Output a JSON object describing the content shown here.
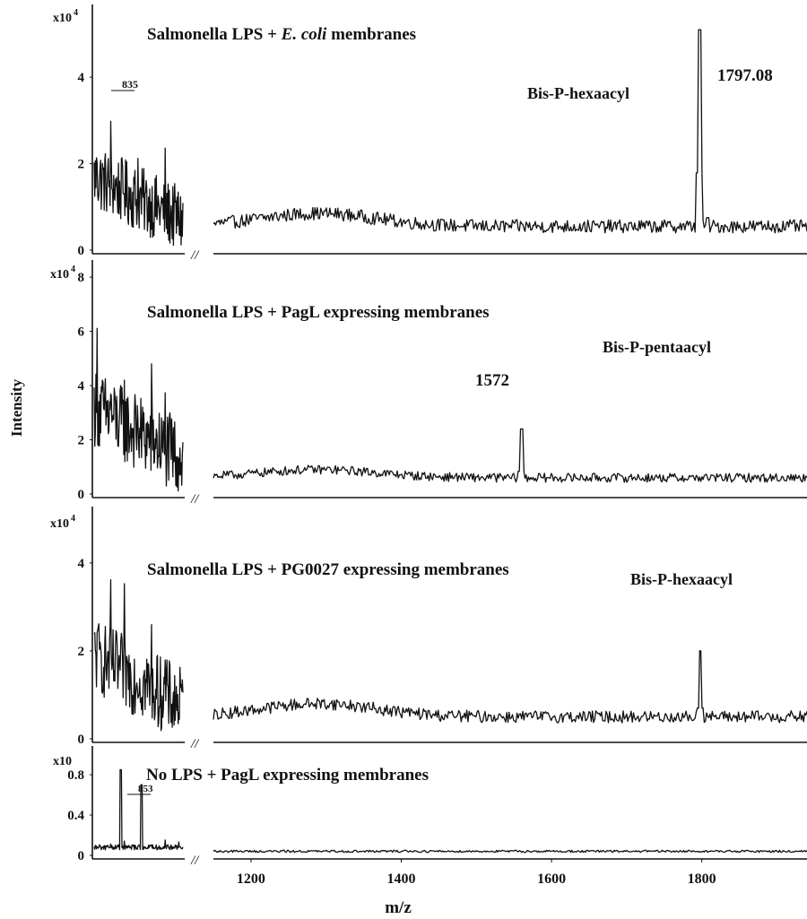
{
  "figure": {
    "ylabel": "Intensity",
    "xlabel": "m/z",
    "break_mark": "//"
  },
  "chart_data": {
    "type": "line",
    "x_axis": {
      "ticks": [
        1200,
        1400,
        1600,
        1800
      ],
      "range": [
        1150,
        1940
      ]
    },
    "panels": [
      {
        "title_prefix": "Salmonella LPS + ",
        "title_italic": "E. coli",
        "title_suffix": " membranes",
        "y_multiplier": "x10",
        "y_exponent": "4",
        "y_ticks": [
          "0",
          "2",
          "4"
        ],
        "y_range": [
          0,
          5.6
        ],
        "peak_labels": [
          {
            "text": "1797.08",
            "mz": 1797
          },
          {
            "text": "Bis-P-hexaacyl",
            "mz": 1760
          },
          {
            "text": "835",
            "mz": 835
          }
        ],
        "low_mass_base": 1.7,
        "high_mass_baseline": 0.55,
        "peaks": [
          [
            1578,
            0.5
          ],
          [
            1713,
            0.3
          ],
          [
            1768,
            0.5
          ],
          [
            1783,
            0.45
          ],
          [
            1797,
            5.1
          ],
          [
            1808,
            0.75
          ],
          [
            1820,
            0.4
          ]
        ]
      },
      {
        "title": "Salmonella LPS + PagL expressing membranes",
        "y_multiplier": "x10",
        "y_exponent": "4",
        "y_ticks": [
          "0",
          "2",
          "4",
          "6",
          "8"
        ],
        "y_range": [
          0,
          8.5
        ],
        "peak_labels": [
          {
            "text": "Bis-P-pentaacyl",
            "mz": 1700
          },
          {
            "text": "1572",
            "mz": 1560
          }
        ],
        "low_mass_base": 3.2,
        "high_mass_baseline": 0.6,
        "peaks": [
          [
            1472,
            0.6
          ],
          [
            1560,
            2.4
          ],
          [
            1572,
            0.4
          ]
        ]
      },
      {
        "title": "Salmonella LPS + PG0027 expressing membranes",
        "y_multiplier": "x10",
        "y_exponent": "4",
        "y_ticks": [
          "0",
          "2",
          "4"
        ],
        "y_range": [
          0,
          5.2
        ],
        "peak_labels": [
          {
            "text": "Bis-P-hexaacyl",
            "mz": 1790
          }
        ],
        "low_mass_base": 1.9,
        "high_mass_baseline": 0.5,
        "peaks": [
          [
            1798,
            2.0
          ]
        ]
      },
      {
        "title": "No LPS + PagL expressing membranes",
        "y_multiplier": "x10",
        "y_exponent": "",
        "y_ticks": [
          "0",
          "0.4",
          "0.8"
        ],
        "y_range": [
          0,
          1.05
        ],
        "peak_labels": [
          {
            "text": "853",
            "mz": 853
          }
        ],
        "low_mass_base": 0.1,
        "high_mass_baseline": 0.04,
        "peaks": [
          [
            1405,
            0.05
          ]
        ]
      }
    ]
  }
}
